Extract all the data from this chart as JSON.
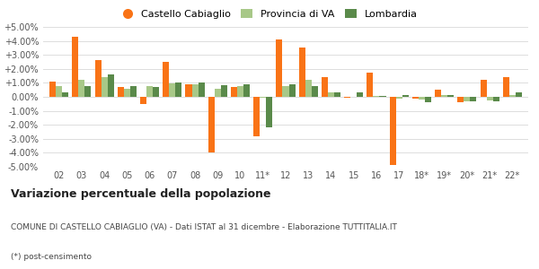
{
  "categories": [
    "02",
    "03",
    "04",
    "05",
    "06",
    "07",
    "08",
    "09",
    "10",
    "11*",
    "12",
    "13",
    "14",
    "15",
    "16",
    "17",
    "18*",
    "19*",
    "20*",
    "21*",
    "22*"
  ],
  "castello": [
    1.1,
    4.3,
    2.6,
    0.7,
    -0.5,
    2.5,
    0.9,
    -4.0,
    0.7,
    -2.8,
    4.1,
    3.5,
    1.4,
    -0.05,
    1.7,
    -4.9,
    -0.1,
    0.5,
    -0.4,
    1.2,
    1.4
  ],
  "provincia": [
    0.8,
    1.2,
    1.4,
    0.6,
    0.75,
    0.95,
    0.9,
    0.6,
    0.8,
    -0.05,
    0.75,
    1.25,
    0.3,
    0.0,
    0.05,
    -0.1,
    -0.2,
    0.15,
    -0.3,
    -0.25,
    0.15
  ],
  "lombardia": [
    0.3,
    0.8,
    1.6,
    0.8,
    0.7,
    1.0,
    1.0,
    0.85,
    0.9,
    -2.2,
    0.9,
    0.75,
    0.3,
    0.3,
    0.05,
    0.1,
    -0.4,
    0.15,
    -0.3,
    -0.3,
    0.3
  ],
  "color_castello": "#f97316",
  "color_provincia": "#a8c888",
  "color_lombardia": "#5a8a4a",
  "ylim": [
    -5.0,
    5.0
  ],
  "yticks": [
    -5.0,
    -4.0,
    -3.0,
    -2.0,
    -1.0,
    0.0,
    1.0,
    2.0,
    3.0,
    4.0,
    5.0
  ],
  "title": "Variazione percentuale della popolazione",
  "subtitle": "COMUNE DI CASTELLO CABIAGLIO (VA) - Dati ISTAT al 31 dicembre - Elaborazione TUTTITALIA.IT",
  "footnote": "(*) post-censimento",
  "legend_labels": [
    "Castello Cabiaglio",
    "Provincia di VA",
    "Lombardia"
  ],
  "bg_color": "#ffffff",
  "grid_color": "#dddddd"
}
